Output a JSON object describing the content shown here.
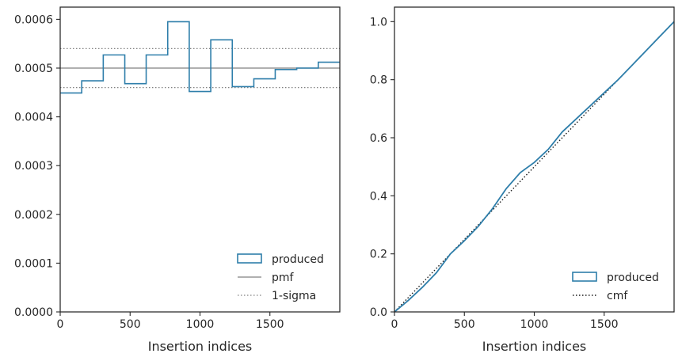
{
  "colors": {
    "produced": "#2e7eaa",
    "reference": "#808080",
    "cmf": "#1a1a1a",
    "axes": "#262626"
  },
  "chart_data": [
    {
      "type": "step-histogram",
      "xlabel": "Insertion indices",
      "ylabel": "",
      "xlim": [
        0,
        2000
      ],
      "ylim": [
        0,
        0.000625
      ],
      "xticks": [
        0,
        500,
        1000,
        1500
      ],
      "xtick_labels": [
        "0",
        "500",
        "1000",
        "1500"
      ],
      "yticks": [
        0,
        0.0001,
        0.0002,
        0.0003,
        0.0004,
        0.0005,
        0.0006
      ],
      "ytick_labels": [
        "0.0000",
        "0.0001",
        "0.0002",
        "0.0003",
        "0.0004",
        "0.0005",
        "0.0006"
      ],
      "bin_edges": [
        0,
        154,
        308,
        462,
        615,
        769,
        923,
        1077,
        1231,
        1385,
        1538,
        1692,
        1846,
        2000
      ],
      "values": [
        0.000449,
        0.000474,
        0.000527,
        0.000468,
        0.000527,
        0.000595,
        0.000452,
        0.000558,
        0.000462,
        0.000478,
        0.000497,
        0.0005,
        0.000512
      ],
      "pmf": 0.0005,
      "sigma_band": [
        0.00046,
        0.00054
      ],
      "legend": {
        "position": "lower-right",
        "entries": [
          "produced",
          "pmf",
          "1-sigma"
        ]
      }
    },
    {
      "type": "line",
      "xlabel": "Insertion indices",
      "ylabel": "",
      "xlim": [
        0,
        2000
      ],
      "ylim": [
        0,
        1.05
      ],
      "xticks": [
        0,
        500,
        1000,
        1500
      ],
      "xtick_labels": [
        "0",
        "500",
        "1000",
        "1500"
      ],
      "yticks": [
        0,
        0.2,
        0.4,
        0.6,
        0.8,
        1.0
      ],
      "ytick_labels": [
        "0.0",
        "0.2",
        "0.4",
        "0.6",
        "0.8",
        "1.0"
      ],
      "produced": {
        "x": [
          0,
          100,
          200,
          300,
          400,
          500,
          600,
          700,
          800,
          900,
          1000,
          1100,
          1200,
          1300,
          1400,
          1500,
          1600,
          1700,
          1800,
          1900,
          2000
        ],
        "y": [
          0,
          0.04,
          0.085,
          0.135,
          0.2,
          0.245,
          0.295,
          0.355,
          0.425,
          0.48,
          0.515,
          0.56,
          0.62,
          0.665,
          0.71,
          0.755,
          0.8,
          0.85,
          0.9,
          0.95,
          1.0
        ]
      },
      "cmf": {
        "x": [
          0,
          2000
        ],
        "y": [
          0,
          1.0
        ]
      },
      "legend": {
        "position": "lower-right",
        "entries": [
          "produced",
          "cmf"
        ]
      }
    }
  ]
}
